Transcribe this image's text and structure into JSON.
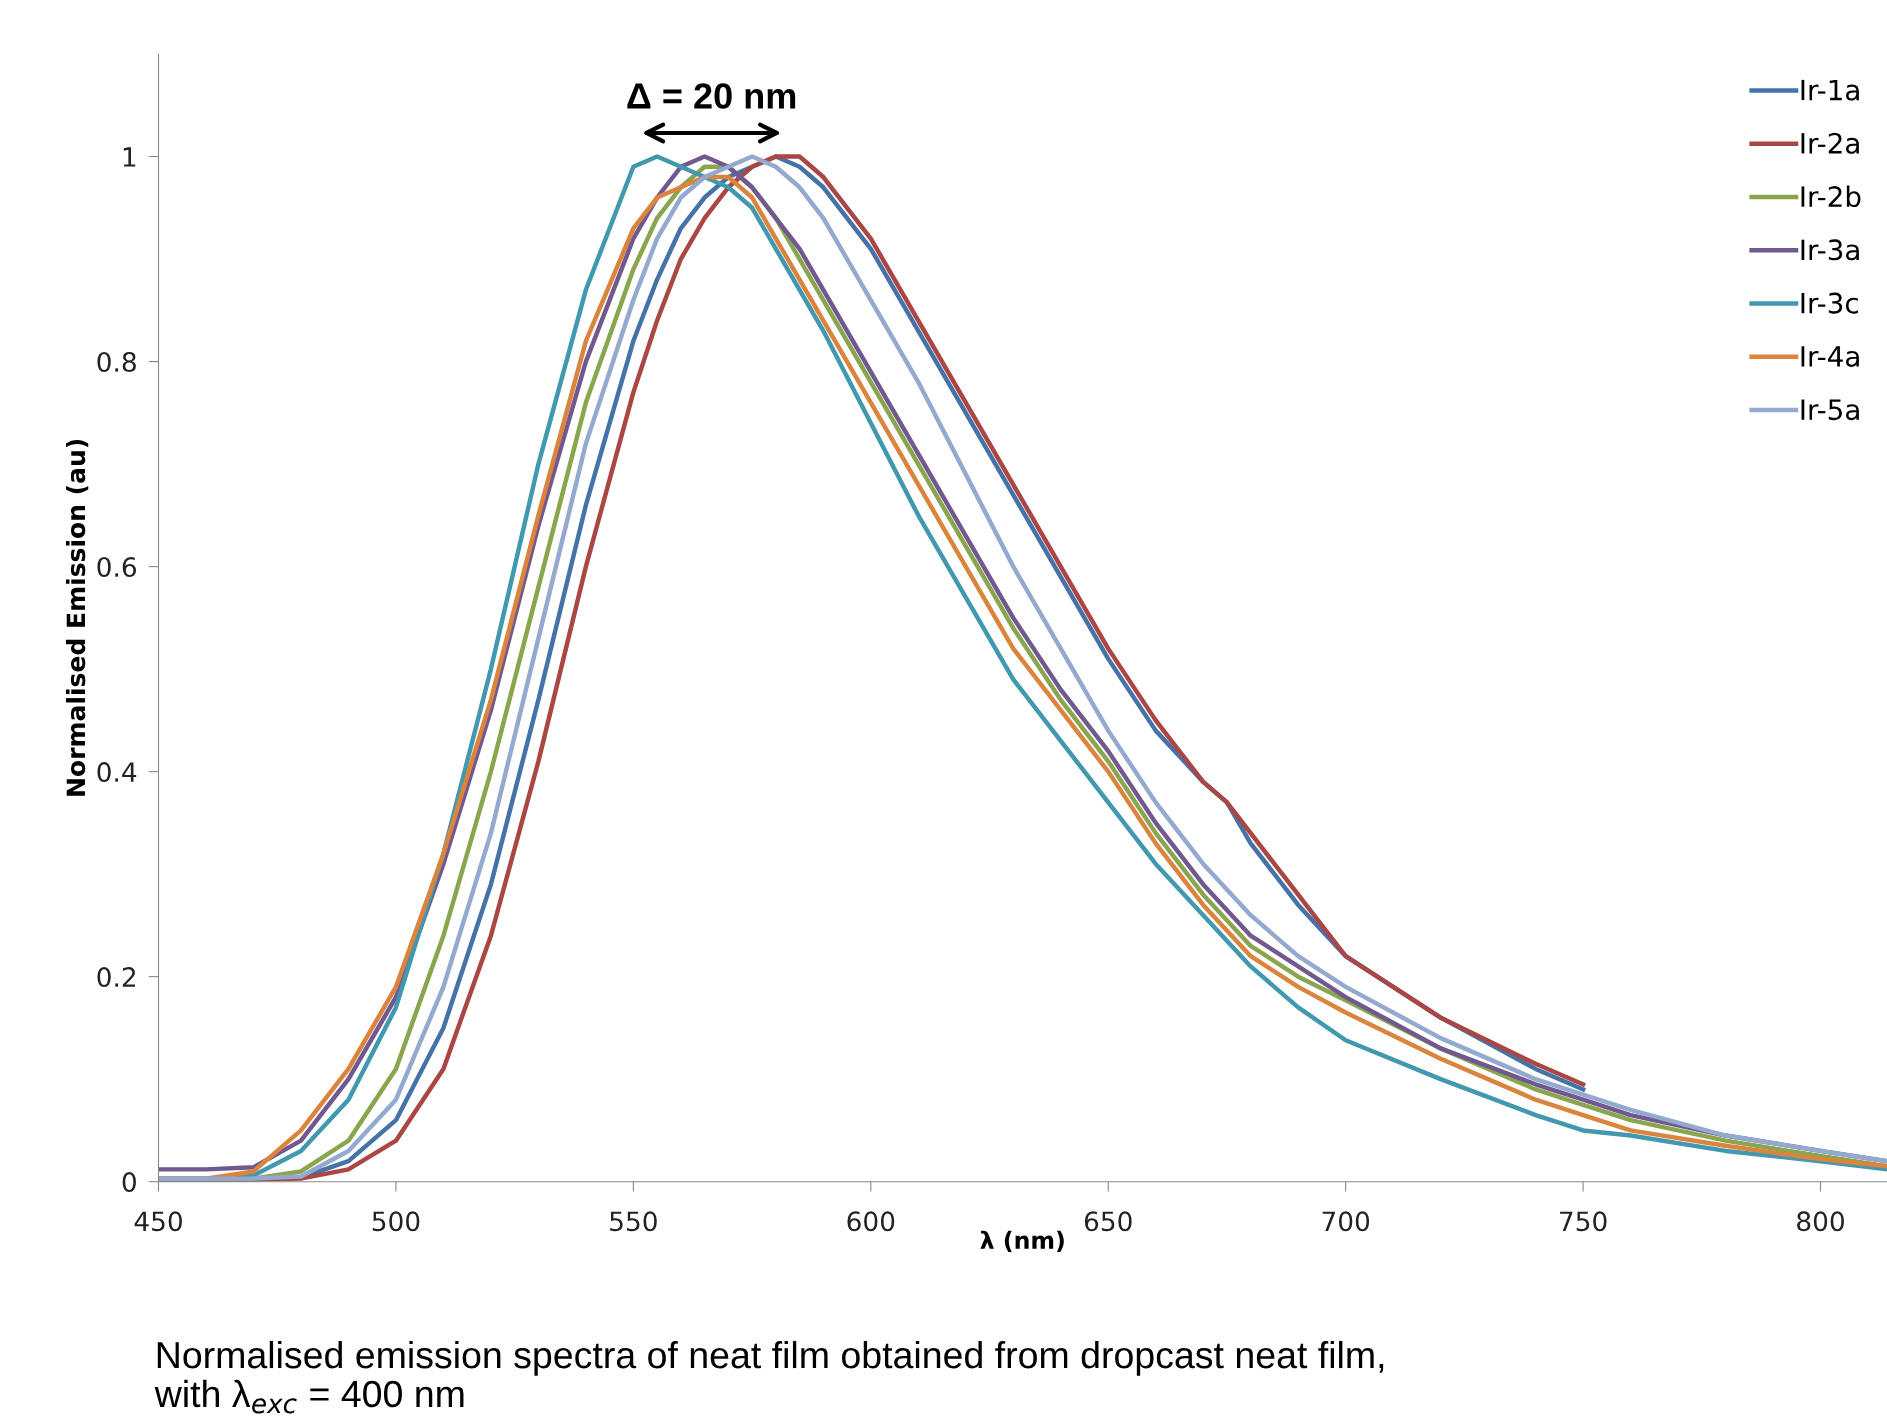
{
  "chart_data": {
    "type": "line",
    "xlabel": "λ (nm)",
    "ylabel": "Normalised Emission (au)",
    "xlim": [
      450,
      814
    ],
    "xticks": [
      450,
      500,
      550,
      600,
      650,
      700,
      750,
      800
    ],
    "ylim": [
      0,
      1.1
    ],
    "yticks": [
      0,
      0.2,
      0.4,
      0.6,
      0.8,
      1
    ],
    "grid": false,
    "legend": "top right",
    "marker": "none",
    "line_style": "solid",
    "annotations": [
      "Δ = 20 nm",
      "Normalised emission spectra of neat film obtained from dropcast neat film,\nwith λ$_{exc}$ = 400 nm"
    ],
    "series": [
      {
        "name": "Ir-1a",
        "color": "#4572a7",
        "x": [
          450,
          470,
          480,
          490,
          500,
          510,
          520,
          530,
          540,
          550,
          555,
          560,
          565,
          570,
          575,
          580,
          585,
          590,
          600,
          610,
          620,
          630,
          640,
          650,
          660,
          670,
          675,
          680,
          690,
          700,
          720,
          740,
          750
        ],
        "values": [
          0.002,
          0.002,
          0.004,
          0.02,
          0.06,
          0.15,
          0.29,
          0.47,
          0.66,
          0.82,
          0.88,
          0.93,
          0.96,
          0.98,
          0.99,
          1.0,
          0.99,
          0.97,
          0.91,
          0.83,
          0.75,
          0.67,
          0.59,
          0.51,
          0.44,
          0.39,
          0.37,
          0.33,
          0.27,
          0.22,
          0.16,
          0.11,
          0.09
        ]
      },
      {
        "name": "Ir-2a",
        "color": "#aa4643",
        "x": [
          450,
          470,
          480,
          490,
          500,
          510,
          520,
          530,
          540,
          550,
          555,
          560,
          565,
          570,
          575,
          580,
          585,
          590,
          600,
          610,
          620,
          630,
          640,
          650,
          660,
          670,
          675,
          680,
          690,
          700,
          720,
          740,
          750
        ],
        "values": [
          0.002,
          0.002,
          0.003,
          0.012,
          0.04,
          0.11,
          0.24,
          0.41,
          0.6,
          0.77,
          0.84,
          0.9,
          0.94,
          0.97,
          0.99,
          1.0,
          1.0,
          0.98,
          0.92,
          0.84,
          0.76,
          0.68,
          0.6,
          0.52,
          0.45,
          0.39,
          0.37,
          0.34,
          0.28,
          0.22,
          0.16,
          0.115,
          0.095
        ]
      },
      {
        "name": "Ir-2b",
        "color": "#89a54e",
        "x": [
          450,
          460,
          470,
          480,
          490,
          500,
          510,
          520,
          530,
          540,
          550,
          555,
          560,
          565,
          570,
          575,
          580,
          585,
          590,
          600,
          610,
          620,
          630,
          640,
          650,
          660,
          670,
          680,
          690,
          700,
          720,
          740,
          750,
          760,
          780,
          800,
          814
        ],
        "values": [
          0.003,
          0.003,
          0.003,
          0.01,
          0.04,
          0.11,
          0.24,
          0.4,
          0.58,
          0.76,
          0.89,
          0.94,
          0.97,
          0.99,
          0.99,
          0.97,
          0.94,
          0.9,
          0.86,
          0.78,
          0.7,
          0.62,
          0.54,
          0.47,
          0.41,
          0.34,
          0.28,
          0.23,
          0.2,
          0.177,
          0.13,
          0.09,
          0.075,
          0.06,
          0.04,
          0.025,
          0.015
        ]
      },
      {
        "name": "Ir-3a",
        "color": "#71588f",
        "x": [
          450,
          460,
          470,
          480,
          490,
          500,
          510,
          520,
          530,
          540,
          550,
          555,
          560,
          565,
          570,
          575,
          580,
          585,
          590,
          600,
          610,
          620,
          630,
          640,
          650,
          660,
          670,
          680,
          690,
          700,
          720,
          740,
          750,
          760,
          780,
          800,
          814
        ],
        "values": [
          0.012,
          0.012,
          0.014,
          0.04,
          0.1,
          0.18,
          0.31,
          0.46,
          0.64,
          0.8,
          0.92,
          0.96,
          0.99,
          1.0,
          0.99,
          0.97,
          0.94,
          0.91,
          0.87,
          0.79,
          0.71,
          0.63,
          0.55,
          0.48,
          0.42,
          0.35,
          0.29,
          0.24,
          0.21,
          0.18,
          0.13,
          0.095,
          0.08,
          0.065,
          0.045,
          0.03,
          0.02
        ]
      },
      {
        "name": "Ir-3c",
        "color": "#4198af",
        "x": [
          450,
          460,
          470,
          480,
          490,
          500,
          510,
          520,
          530,
          540,
          550,
          555,
          560,
          565,
          570,
          575,
          580,
          585,
          590,
          600,
          610,
          620,
          630,
          640,
          650,
          660,
          670,
          680,
          690,
          700,
          720,
          740,
          750,
          760,
          780,
          800,
          814
        ],
        "values": [
          0.003,
          0.003,
          0.006,
          0.03,
          0.08,
          0.17,
          0.32,
          0.5,
          0.7,
          0.87,
          0.99,
          1.0,
          0.99,
          0.98,
          0.97,
          0.95,
          0.91,
          0.87,
          0.83,
          0.74,
          0.65,
          0.57,
          0.49,
          0.43,
          0.37,
          0.31,
          0.26,
          0.21,
          0.17,
          0.138,
          0.1,
          0.065,
          0.05,
          0.045,
          0.03,
          0.02,
          0.012
        ]
      },
      {
        "name": "Ir-4a",
        "color": "#db843d",
        "x": [
          450,
          460,
          470,
          480,
          490,
          500,
          510,
          520,
          530,
          540,
          550,
          555,
          560,
          565,
          570,
          575,
          580,
          585,
          590,
          600,
          610,
          620,
          630,
          640,
          650,
          660,
          670,
          680,
          690,
          700,
          720,
          740,
          750,
          760,
          780,
          800,
          814
        ],
        "values": [
          0.003,
          0.003,
          0.01,
          0.05,
          0.11,
          0.19,
          0.32,
          0.47,
          0.65,
          0.82,
          0.93,
          0.96,
          0.97,
          0.98,
          0.98,
          0.96,
          0.92,
          0.88,
          0.84,
          0.76,
          0.68,
          0.6,
          0.52,
          0.46,
          0.4,
          0.33,
          0.27,
          0.22,
          0.19,
          0.165,
          0.12,
          0.08,
          0.065,
          0.05,
          0.035,
          0.022,
          0.015
        ]
      },
      {
        "name": "Ir-5a",
        "color": "#93a9cf",
        "x": [
          450,
          460,
          470,
          480,
          490,
          500,
          510,
          520,
          530,
          540,
          550,
          555,
          560,
          565,
          570,
          575,
          580,
          585,
          590,
          600,
          610,
          620,
          630,
          640,
          650,
          660,
          670,
          680,
          690,
          700,
          720,
          740,
          750,
          760,
          780,
          800,
          814
        ],
        "values": [
          0.003,
          0.003,
          0.003,
          0.005,
          0.03,
          0.08,
          0.19,
          0.34,
          0.53,
          0.72,
          0.86,
          0.92,
          0.96,
          0.98,
          0.99,
          1.0,
          0.99,
          0.97,
          0.94,
          0.86,
          0.78,
          0.69,
          0.6,
          0.52,
          0.44,
          0.37,
          0.31,
          0.26,
          0.22,
          0.19,
          0.14,
          0.1,
          0.085,
          0.07,
          0.045,
          0.03,
          0.02
        ]
      }
    ]
  }
}
